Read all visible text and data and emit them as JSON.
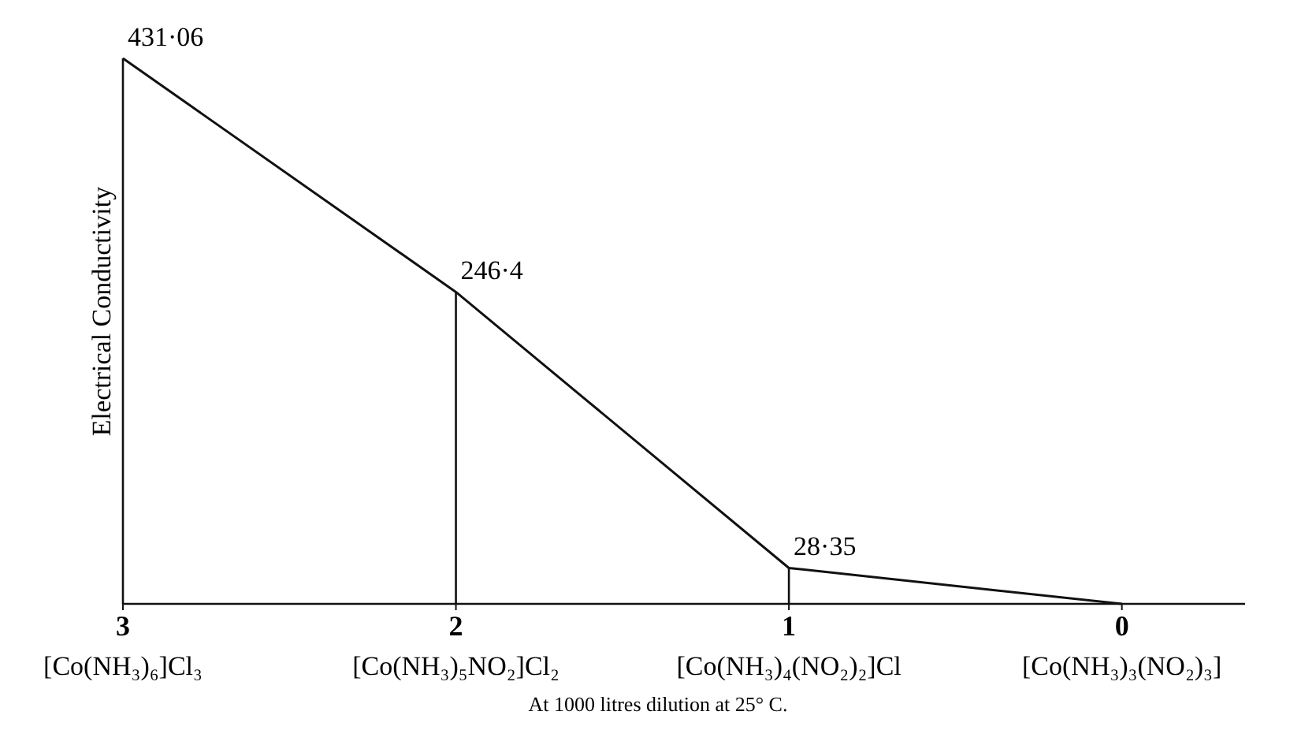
{
  "chart_data": {
    "type": "line",
    "ylabel": "Electrical Conductivity",
    "x": [
      3,
      2,
      1,
      0
    ],
    "xlim": [
      3,
      -0.37
    ],
    "xticks": [
      3,
      2,
      1,
      0
    ],
    "values": [
      431.06,
      246.4,
      28.35,
      0
    ],
    "value_labels": [
      "431·06",
      "246·4",
      "28·35",
      null
    ],
    "color": "#111111",
    "marker": "none",
    "line_style": "solid",
    "tick_labels": "x",
    "annotations": [
      "[Co(NH₃)₆]Cl₃",
      "[Co(NH₃)₅NO₂]Cl₂",
      "[Co(NH₃)₄(NO₂)₂]Cl",
      "[Co(NH₃)₃(NO₂)₃]",
      "At 1000 litres dilution at 25° C."
    ]
  }
}
